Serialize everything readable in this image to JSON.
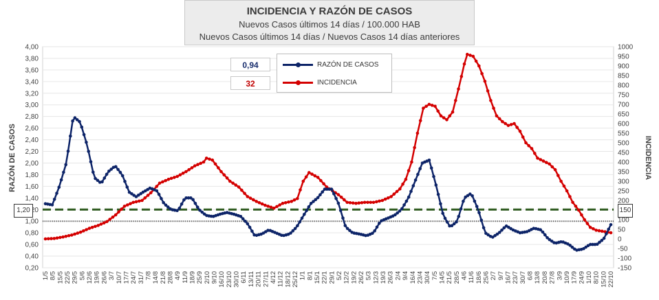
{
  "header": {
    "title": "INCIDENCIA Y RAZÓN DE CASOS",
    "line1": "Nuevos Casos últimos 14 días / 100.000 HAB",
    "line2": "Nuevos Casos últimos 14 días / Nuevos Casos 14 días anteriores"
  },
  "indicators": {
    "ratio_value": "0,94",
    "ratio_color": "#1a2f6e",
    "incidence_value": "32",
    "incidence_color": "#c00000"
  },
  "reference": {
    "left_label": "1,20",
    "right_label": "150"
  },
  "colors": {
    "ratio": "#0d2468",
    "incidence": "#d40000",
    "threshold": "#2e5a1e",
    "one_line": "#555555"
  },
  "chart_data": {
    "type": "line",
    "ylabel": "RAZÓN DE CASOS",
    "y2label": "INCIDENCIA",
    "ylim": [
      0.2,
      4.0
    ],
    "y2lim": [
      -150,
      1000
    ],
    "yticks": [
      "0,20",
      "0,40",
      "0,60",
      "0,80",
      "1,00",
      "1,20",
      "1,40",
      "1,60",
      "1,80",
      "2,00",
      "2,20",
      "2,40",
      "2,60",
      "2,80",
      "3,00",
      "3,20",
      "3,40",
      "3,60",
      "3,80",
      "4,00"
    ],
    "y2ticks": [
      "-150",
      "-100",
      "-50",
      "0",
      "50",
      "100",
      "150",
      "200",
      "250",
      "300",
      "350",
      "400",
      "450",
      "500",
      "550",
      "600",
      "650",
      "700",
      "750",
      "800",
      "850",
      "900",
      "950",
      "1000"
    ],
    "x_labels": [
      "1/5",
      "8/5",
      "15/5",
      "22/5",
      "29/5",
      "5/6",
      "12/6",
      "19/6",
      "26/6",
      "3/7",
      "10/7",
      "17/7",
      "24/7",
      "31/7",
      "7/8",
      "14/8",
      "21/8",
      "28/8",
      "4/9",
      "11/9",
      "18/9",
      "25/9",
      "2/10",
      "9/10",
      "16/10",
      "23/10",
      "30/10",
      "6/11",
      "13/11",
      "20/11",
      "27/11",
      "4/12",
      "11/12",
      "18/12",
      "25/12",
      "1/1",
      "8/1",
      "15/1",
      "22/1",
      "29/1",
      "5/2",
      "12/2",
      "19/2",
      "26/2",
      "5/3",
      "12/3",
      "19/3",
      "26/3",
      "2/4",
      "9/4",
      "16/4",
      "23/4",
      "30/4",
      "7/5",
      "14/5",
      "21/5",
      "28/5",
      "4/6",
      "11/6",
      "18/6",
      "25/6",
      "2/7",
      "9/7",
      "16/7",
      "23/7",
      "30/7",
      "6/8",
      "13/8",
      "20/8",
      "27/8",
      "3/9",
      "10/9",
      "17/9",
      "24/9",
      "1/10",
      "8/10",
      "15/10",
      "22/10"
    ],
    "thresholds": {
      "ratio_one": 1.0,
      "ratio_reference": 1.2,
      "incidence_reference": 150
    },
    "series": [
      {
        "name": "RAZÓN DE CASOS",
        "axis": "left",
        "anchors": [
          [
            0,
            1.3
          ],
          [
            1,
            1.28
          ],
          [
            2,
            1.6
          ],
          [
            3,
            2.0
          ],
          [
            4,
            2.8
          ],
          [
            5,
            2.7
          ],
          [
            6,
            2.3
          ],
          [
            7,
            1.75
          ],
          [
            8,
            1.65
          ],
          [
            9,
            1.85
          ],
          [
            10,
            1.95
          ],
          [
            11,
            1.8
          ],
          [
            12,
            1.5
          ],
          [
            13,
            1.42
          ],
          [
            14,
            1.5
          ],
          [
            15,
            1.57
          ],
          [
            16,
            1.52
          ],
          [
            17,
            1.3
          ],
          [
            18,
            1.2
          ],
          [
            19,
            1.18
          ],
          [
            20,
            1.4
          ],
          [
            21,
            1.4
          ],
          [
            22,
            1.2
          ],
          [
            23,
            1.1
          ],
          [
            24,
            1.08
          ],
          [
            25,
            1.12
          ],
          [
            26,
            1.15
          ],
          [
            27,
            1.12
          ],
          [
            28,
            1.08
          ],
          [
            29,
            0.95
          ],
          [
            30,
            0.75
          ],
          [
            31,
            0.78
          ],
          [
            32,
            0.85
          ],
          [
            33,
            0.8
          ],
          [
            34,
            0.75
          ],
          [
            35,
            0.78
          ],
          [
            36,
            0.9
          ],
          [
            37,
            1.1
          ],
          [
            38,
            1.3
          ],
          [
            39,
            1.4
          ],
          [
            40,
            1.55
          ],
          [
            41,
            1.55
          ],
          [
            42,
            1.3
          ],
          [
            43,
            0.9
          ],
          [
            44,
            0.8
          ],
          [
            45,
            0.78
          ],
          [
            46,
            0.75
          ],
          [
            47,
            0.8
          ],
          [
            48,
            1.0
          ],
          [
            49,
            1.05
          ],
          [
            50,
            1.1
          ],
          [
            51,
            1.2
          ],
          [
            52,
            1.4
          ],
          [
            53,
            1.7
          ],
          [
            54,
            2.0
          ],
          [
            55,
            2.05
          ],
          [
            56,
            1.6
          ],
          [
            57,
            1.1
          ],
          [
            58,
            0.9
          ],
          [
            59,
            1.0
          ],
          [
            60,
            1.4
          ],
          [
            61,
            1.48
          ],
          [
            62,
            1.2
          ],
          [
            63,
            0.8
          ],
          [
            64,
            0.72
          ],
          [
            65,
            0.8
          ],
          [
            66,
            0.92
          ],
          [
            67,
            0.85
          ],
          [
            68,
            0.8
          ],
          [
            69,
            0.82
          ],
          [
            70,
            0.88
          ],
          [
            71,
            0.85
          ],
          [
            72,
            0.7
          ],
          [
            73,
            0.62
          ],
          [
            74,
            0.65
          ],
          [
            75,
            0.6
          ],
          [
            76,
            0.5
          ],
          [
            77,
            0.52
          ],
          [
            78,
            0.6
          ],
          [
            79,
            0.6
          ],
          [
            80,
            0.7
          ],
          [
            81,
            0.94
          ]
        ]
      },
      {
        "name": "INCIDENCIA",
        "axis": "right",
        "anchors": [
          [
            0,
            0
          ],
          [
            3,
            2
          ],
          [
            6,
            10
          ],
          [
            9,
            20
          ],
          [
            12,
            35
          ],
          [
            15,
            55
          ],
          [
            18,
            70
          ],
          [
            21,
            90
          ],
          [
            24,
            125
          ],
          [
            27,
            170
          ],
          [
            30,
            190
          ],
          [
            33,
            200
          ],
          [
            36,
            240
          ],
          [
            39,
            290
          ],
          [
            42,
            310
          ],
          [
            45,
            325
          ],
          [
            48,
            350
          ],
          [
            51,
            380
          ],
          [
            54,
            400
          ],
          [
            55,
            420
          ],
          [
            57,
            410
          ],
          [
            60,
            350
          ],
          [
            63,
            300
          ],
          [
            66,
            270
          ],
          [
            69,
            220
          ],
          [
            72,
            195
          ],
          [
            75,
            175
          ],
          [
            78,
            160
          ],
          [
            81,
            185
          ],
          [
            84,
            195
          ],
          [
            86,
            210
          ],
          [
            88,
            300
          ],
          [
            90,
            345
          ],
          [
            93,
            320
          ],
          [
            96,
            270
          ],
          [
            100,
            230
          ],
          [
            103,
            190
          ],
          [
            106,
            185
          ],
          [
            109,
            190
          ],
          [
            112,
            190
          ],
          [
            115,
            200
          ],
          [
            118,
            220
          ],
          [
            121,
            260
          ],
          [
            123,
            310
          ],
          [
            125,
            400
          ],
          [
            127,
            550
          ],
          [
            129,
            680
          ],
          [
            131,
            700
          ],
          [
            133,
            690
          ],
          [
            135,
            640
          ],
          [
            137,
            620
          ],
          [
            139,
            660
          ],
          [
            141,
            780
          ],
          [
            143,
            910
          ],
          [
            144,
            960
          ],
          [
            146,
            950
          ],
          [
            148,
            900
          ],
          [
            150,
            820
          ],
          [
            152,
            720
          ],
          [
            154,
            640
          ],
          [
            156,
            610
          ],
          [
            158,
            590
          ],
          [
            160,
            600
          ],
          [
            162,
            560
          ],
          [
            164,
            500
          ],
          [
            166,
            470
          ],
          [
            168,
            420
          ],
          [
            170,
            405
          ],
          [
            172,
            390
          ],
          [
            174,
            360
          ],
          [
            176,
            300
          ],
          [
            178,
            250
          ],
          [
            180,
            190
          ],
          [
            182,
            150
          ],
          [
            184,
            100
          ],
          [
            186,
            60
          ],
          [
            188,
            45
          ],
          [
            190,
            40
          ],
          [
            192,
            35
          ],
          [
            193,
            32
          ]
        ]
      }
    ]
  }
}
